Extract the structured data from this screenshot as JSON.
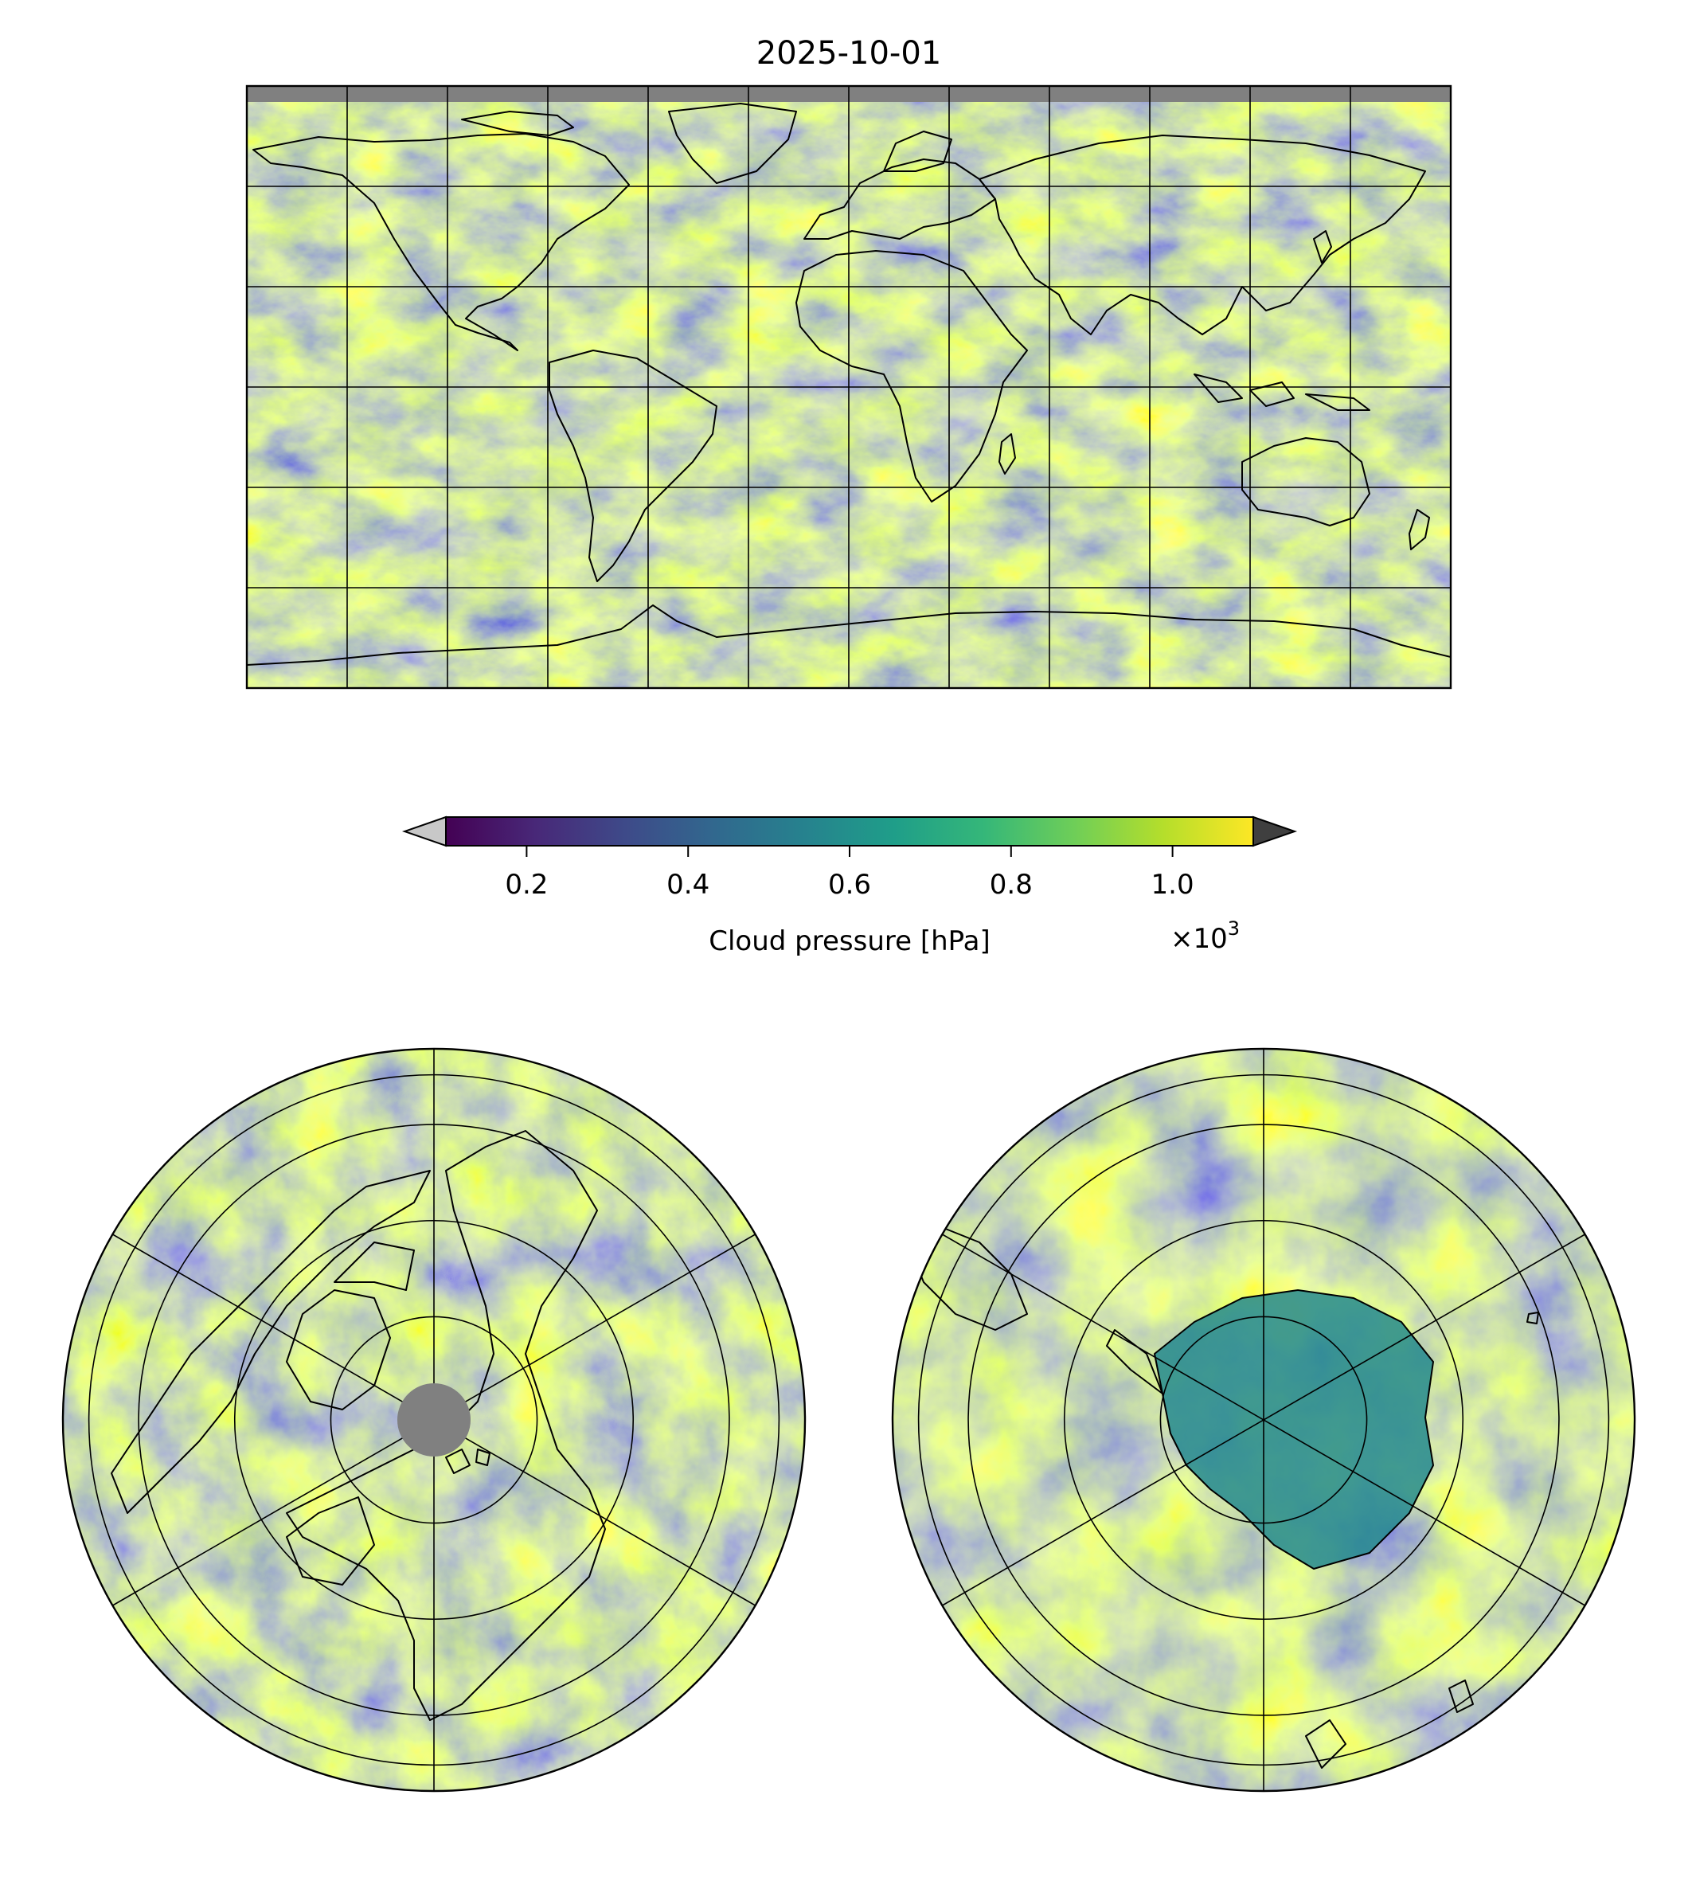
{
  "figure": {
    "title": "2025-10-01",
    "variable": "Cloud pressure [hPa]",
    "panels": [
      "global equirectangular map",
      "north polar stereographic map",
      "south polar stereographic map"
    ]
  },
  "colorbar": {
    "label": "Cloud pressure [hPa]",
    "scale_text": "×10",
    "scale_exponent": "3",
    "ticks": [
      {
        "value": 0.2,
        "label": "0.2"
      },
      {
        "value": 0.4,
        "label": "0.4"
      },
      {
        "value": 0.6,
        "label": "0.6"
      },
      {
        "value": 0.8,
        "label": "0.8"
      },
      {
        "value": 1.0,
        "label": "1.0"
      }
    ],
    "range": [
      0.1,
      1.1
    ],
    "extend": "both",
    "under_color": "#c8c8c8",
    "over_color": "#3f3f3f",
    "colormap": "viridis",
    "stops": [
      "#440154",
      "#482878",
      "#3e4a89",
      "#31688e",
      "#26828e",
      "#1f9e89",
      "#35b779",
      "#6ece58",
      "#b5de2b",
      "#fde725"
    ]
  },
  "colors": {
    "missing": "#808080",
    "coastline": "#000000"
  }
}
